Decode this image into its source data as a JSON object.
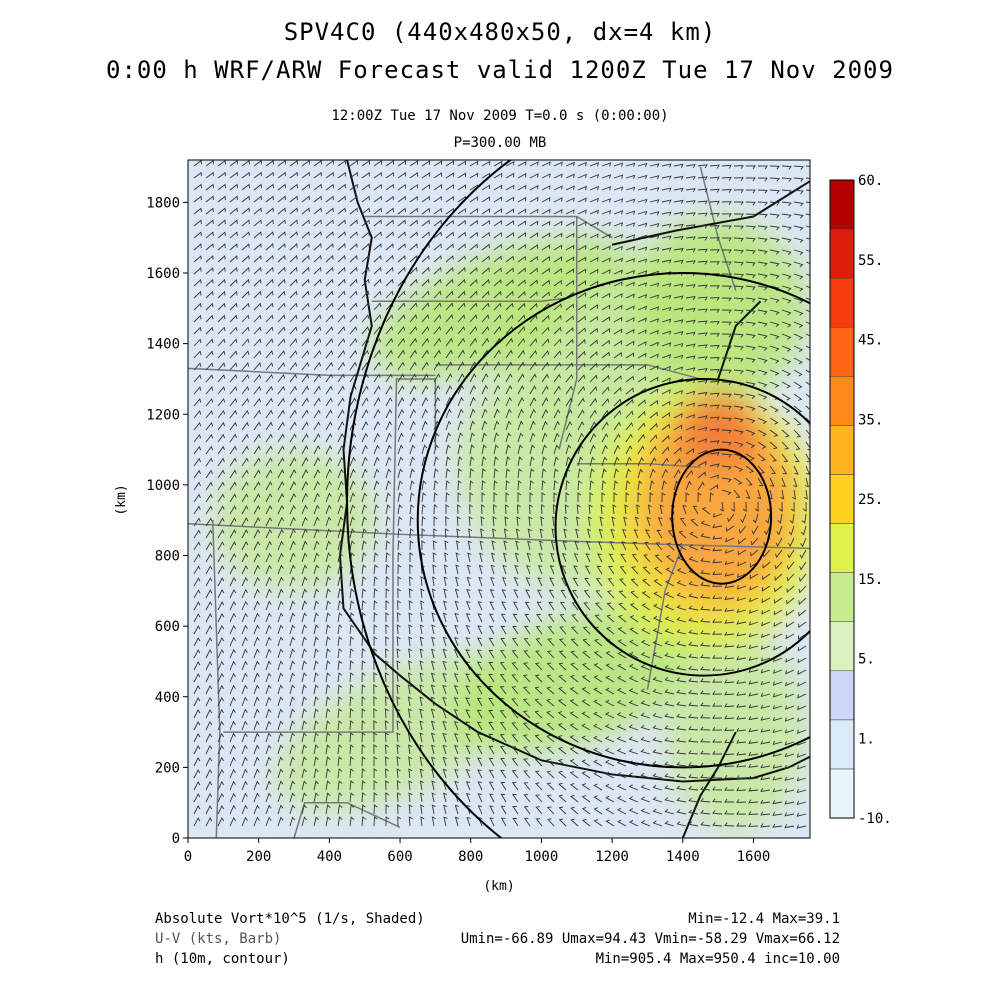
{
  "title": {
    "line1": "SPV4C0 (440x480x50, dx=4 km)",
    "line2": "0:00 h WRF/ARW Forecast valid 1200Z Tue 17 Nov 2009",
    "subtitle1": "12:00Z Tue 17 Nov 2009     T=0.0 s (0:00:00)",
    "subtitle2": "P=300.00 MB"
  },
  "footer": {
    "field1_label": "Absolute Vort*10^5 (1/s, Shaded)",
    "field1_stats": "Min=-12.4 Max=39.1",
    "field2_label": "U-V (kts, Barb)",
    "field2_stats": "Umin=-66.89 Umax=94.43 Vmin=-58.29 Vmax=66.12",
    "field3_label": "h (10m, contour)",
    "field3_stats": "Min=905.4 Max=950.4 inc=10.00"
  },
  "colors": {
    "colorbar": [
      "#e8f5fb",
      "#dbeaf8",
      "#cdd6f4",
      "#d9f2c0",
      "#c7ec8e",
      "#dff24a",
      "#ffd21e",
      "#ffb31e",
      "#ff8a1a",
      "#ff6414",
      "#f83c0f",
      "#dc1e0a",
      "#b40000"
    ],
    "vort_field": [
      "#d4e0f2",
      "#c9d8f5",
      "#c6e8a0",
      "#b8e67a",
      "#d9f14a",
      "#f7d63a",
      "#f8a640",
      "#f2823a"
    ]
  },
  "chart_data": {
    "type": "heatmap",
    "description_fields": [
      "Absolute vorticity (shaded)",
      "Wind barbs",
      "Geopotential height contours"
    ],
    "xlabel": "(km)",
    "ylabel": "(km)",
    "xlim": [
      0,
      1760
    ],
    "ylim": [
      0,
      1920
    ],
    "x_ticks": [
      0,
      200,
      400,
      600,
      800,
      1000,
      1200,
      1400,
      1600
    ],
    "y_ticks": [
      0,
      200,
      400,
      600,
      800,
      1000,
      1200,
      1400,
      1600,
      1800
    ],
    "colorbar_labels": [
      "60.",
      "55.",
      "45.",
      "35.",
      "25.",
      "15.",
      "5.",
      "1.",
      "-10."
    ],
    "colorbar_levels": [
      -10,
      -5,
      0,
      1,
      5,
      10,
      15,
      20,
      25,
      30,
      35,
      40,
      45,
      50,
      55,
      60
    ],
    "vorticity_center_km": [
      1500,
      950
    ],
    "height_contours": [
      {
        "center_km": [
          1510,
          910
        ],
        "rx_km": 140,
        "ry_km": 190
      },
      {
        "center_km": [
          1460,
          880
        ],
        "rx_km": 420,
        "ry_km": 420
      },
      {
        "center_km": [
          1400,
          900
        ],
        "rx_km": 750,
        "ry_km": 700
      },
      {
        "center_km": [
          1450,
          950
        ],
        "rx_km": 1000,
        "ry_km": 1150
      }
    ]
  }
}
